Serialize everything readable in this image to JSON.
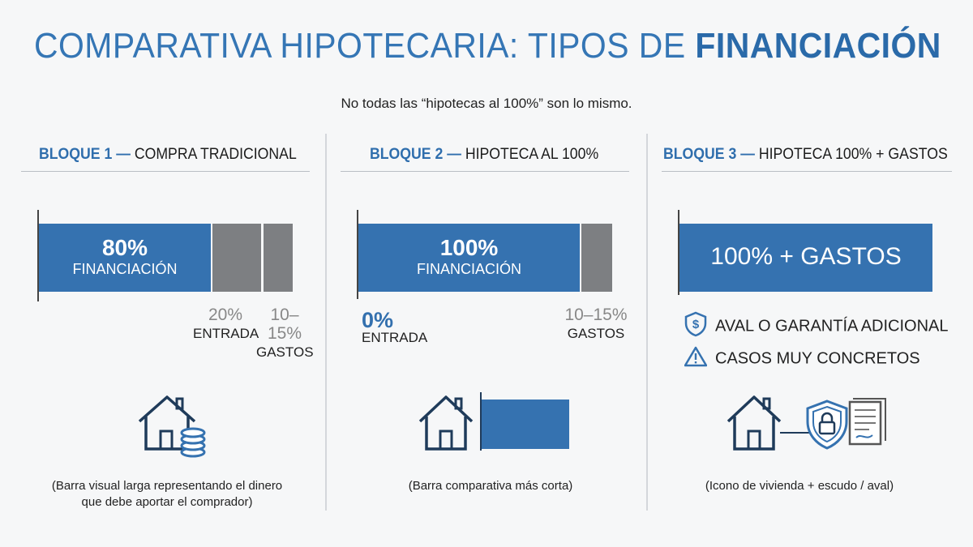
{
  "title": {
    "part1": "COMPARATIVA HIPOTECARIA: TIPOS DE ",
    "part2": "FINANCIACIÓN"
  },
  "subtitle": "No todas las “hipotecas al 100%” son lo mismo.",
  "blocks": [
    {
      "label": "BLOQUE 1 —",
      "name": "COMPRA TRADICIONAL",
      "financing_pct": "80%",
      "financing_label": "FINANCIACIÓN",
      "entry_pct": "20%",
      "entry_label": "ENTRADA",
      "costs_pct": "10–15%",
      "costs_pct_line1": "10–",
      "costs_pct_line2": "15%",
      "costs_label": "GASTOS",
      "note_line1": "(Barra visual larga representando el dinero",
      "note_line2": "que debe aportar el comprador)",
      "icons": [
        "house-icon",
        "coins-icon"
      ]
    },
    {
      "label": "BLOQUE 2 —",
      "name": "HIPOTECA AL 100%",
      "financing_pct": "100%",
      "financing_label": "FINANCIACIÓN",
      "entry_pct": "0%",
      "entry_label": "ENTRADA",
      "costs_pct": "10–15%",
      "costs_label": "GASTOS",
      "note_line1": "(Barra comparativa más corta)",
      "icons": [
        "house-icon",
        "short-bar-icon"
      ]
    },
    {
      "label": "BLOQUE 3 —",
      "name": "HIPOTECA 100% + GASTOS",
      "financing_label": "100% + GASTOS",
      "features": [
        {
          "icon": "shield-dollar-icon",
          "text": "AVAL O GARANTÍA ADICIONAL"
        },
        {
          "icon": "warning-icon",
          "text": "CASOS MUY CONCRETOS"
        }
      ],
      "note_line1": "(Icono de vivienda + escudo / aval)",
      "icons": [
        "house-icon",
        "shield-lock-icon",
        "document-icon"
      ]
    }
  ],
  "colors": {
    "accent": "#3572b0",
    "grey": "#7d7f82",
    "title": "#3576b5"
  }
}
